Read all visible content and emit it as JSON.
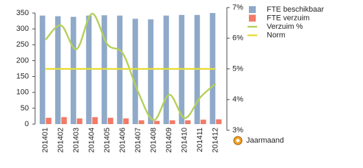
{
  "chart_data": {
    "type": "bar-line",
    "categories": [
      "201401",
      "201402",
      "201403",
      "201404",
      "201405",
      "201406",
      "201407",
      "201408",
      "201409",
      "201410",
      "201411",
      "201412"
    ],
    "series": [
      {
        "name": "FTE beschikbaar",
        "type": "bar",
        "color": "#8fa9c8",
        "values": [
          342,
          340,
          338,
          342,
          343,
          342,
          332,
          330,
          342,
          344,
          344,
          350
        ]
      },
      {
        "name": "FTE verzuim",
        "type": "bar",
        "color": "#f27a68",
        "values": [
          20,
          22,
          18,
          22,
          20,
          18,
          12,
          10,
          12,
          12,
          14,
          15
        ]
      },
      {
        "name": "Verzuim %",
        "type": "line",
        "axis": "y2",
        "smooth": true,
        "color": "#b5cf5a",
        "values": [
          5.95,
          6.42,
          5.64,
          6.8,
          5.8,
          5.5,
          4.23,
          3.33,
          4.16,
          3.4,
          4.07,
          4.52
        ]
      },
      {
        "name": "Norm",
        "type": "line",
        "axis": "y2",
        "smooth": false,
        "color": "#e6dc3a",
        "values": [
          5,
          5,
          5,
          5,
          5,
          5,
          5,
          5,
          5,
          5,
          5,
          5
        ]
      }
    ],
    "ylim": [
      0,
      350
    ],
    "yticks": [
      0,
      50,
      100,
      150,
      200,
      250,
      300,
      350
    ],
    "y2lim": [
      3,
      7
    ],
    "y2ticks": [
      {
        "value": 3,
        "label": "3%"
      },
      {
        "value": 4,
        "label": "4%"
      },
      {
        "value": 5,
        "label": "5%"
      },
      {
        "value": 6,
        "label": "6%"
      },
      {
        "value": 7,
        "label": "7%"
      }
    ],
    "x_label": "Jaarmaand",
    "legend": "right"
  }
}
